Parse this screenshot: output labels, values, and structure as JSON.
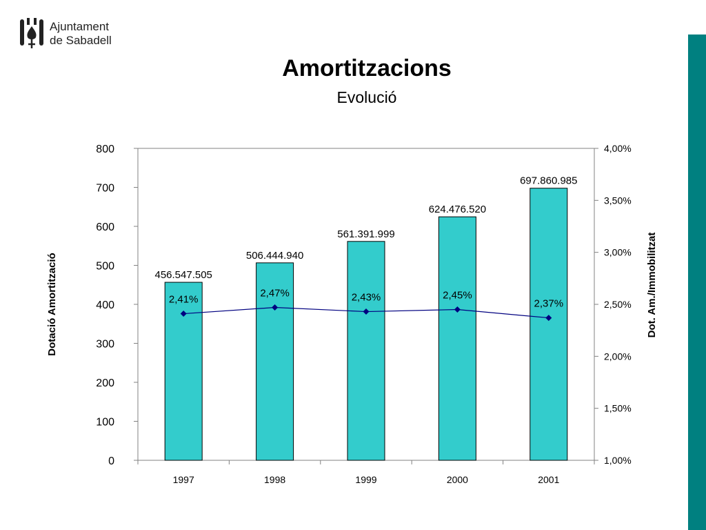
{
  "header": {
    "logo_line1": "Ajuntament",
    "logo_line2": "de Sabadell",
    "logo_icon": "city-coat-icon",
    "title": "Amortitzacions",
    "subtitle": "Evolució"
  },
  "colors": {
    "bar": "#33CCCC",
    "line": "#000080",
    "accent_band": "#008080"
  },
  "chart_data": {
    "type": "bar",
    "categories": [
      "1997",
      "1998",
      "1999",
      "2000",
      "2001"
    ],
    "series": [
      {
        "values": [
          456.547505,
          506.44494,
          561.391999,
          624.47652,
          697.860985
        ],
        "labels": [
          "456.547.505",
          "506.444.940",
          "561.391.999",
          "624.476.520",
          "697.860.985"
        ],
        "axis": "left",
        "kind": "bar"
      },
      {
        "values": [
          2.41,
          2.47,
          2.43,
          2.45,
          2.37
        ],
        "labels": [
          "2,41%",
          "2,47%",
          "2,43%",
          "2,45%",
          "2,37%"
        ],
        "axis": "right",
        "kind": "line"
      }
    ],
    "ylabel": "Dotació Amortització",
    "y2label": "Dot. Am./Immobilitzat",
    "ylim": [
      0,
      800
    ],
    "y2lim": [
      1.0,
      4.0
    ],
    "yticks": [
      "0",
      "100",
      "200",
      "300",
      "400",
      "500",
      "600",
      "700",
      "800"
    ],
    "y2ticks": [
      "1,00%",
      "1,50%",
      "2,00%",
      "2,50%",
      "3,00%",
      "3,50%",
      "4,00%"
    ],
    "grid": false,
    "legend": "none"
  }
}
